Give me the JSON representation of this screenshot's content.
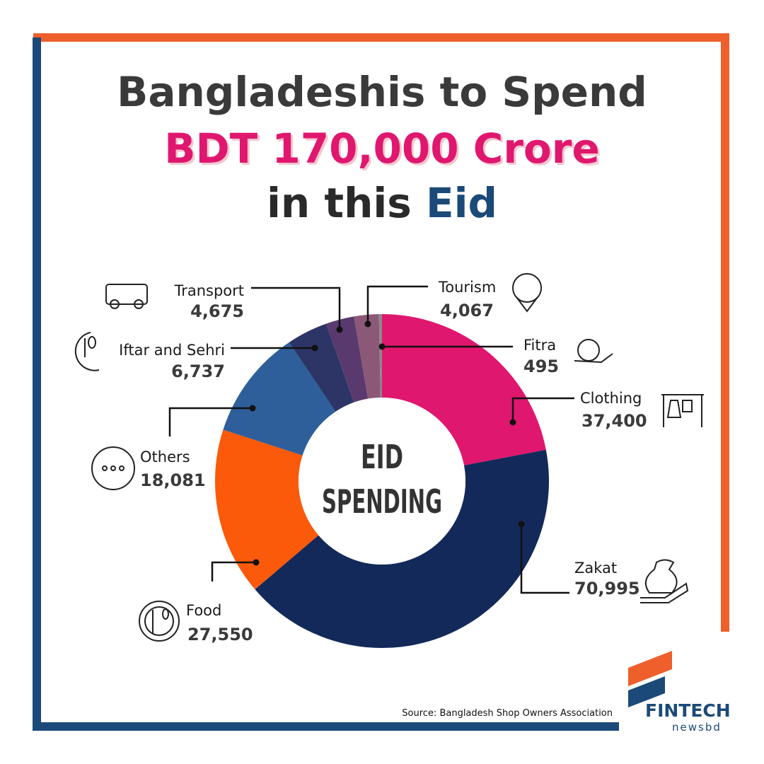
{
  "chart_data": {
    "type": "donut",
    "title": {
      "line1": "Bangladeshis to Spend",
      "line2": "BDT 170,000 Crore",
      "line3": "in this",
      "line3_highlight": "Eid"
    },
    "center_text": [
      "EID",
      "SPENDING"
    ],
    "categories": [
      "Clothing",
      "Zakat",
      "Food",
      "Others",
      "Iftar and Sehri",
      "Transport",
      "Tourism",
      "Fitra"
    ],
    "values": [
      37400,
      70995,
      27550,
      18081,
      6737,
      4675,
      4067,
      495
    ],
    "value_labels": [
      "37,400",
      "70,995",
      "27,550",
      "18,081",
      "6,737",
      "4,675",
      "4,067",
      "495"
    ],
    "colors": [
      "#e0176e",
      "#13295a",
      "#fa5a0a",
      "#2e5f9a",
      "#2d3566",
      "#5a3a6e",
      "#8c5878",
      "#8a8a8a"
    ],
    "source": "Source: Bangladesh Shop Owners Association"
  },
  "logo": {
    "name": "FINTECH",
    "sub": "newsbd"
  }
}
